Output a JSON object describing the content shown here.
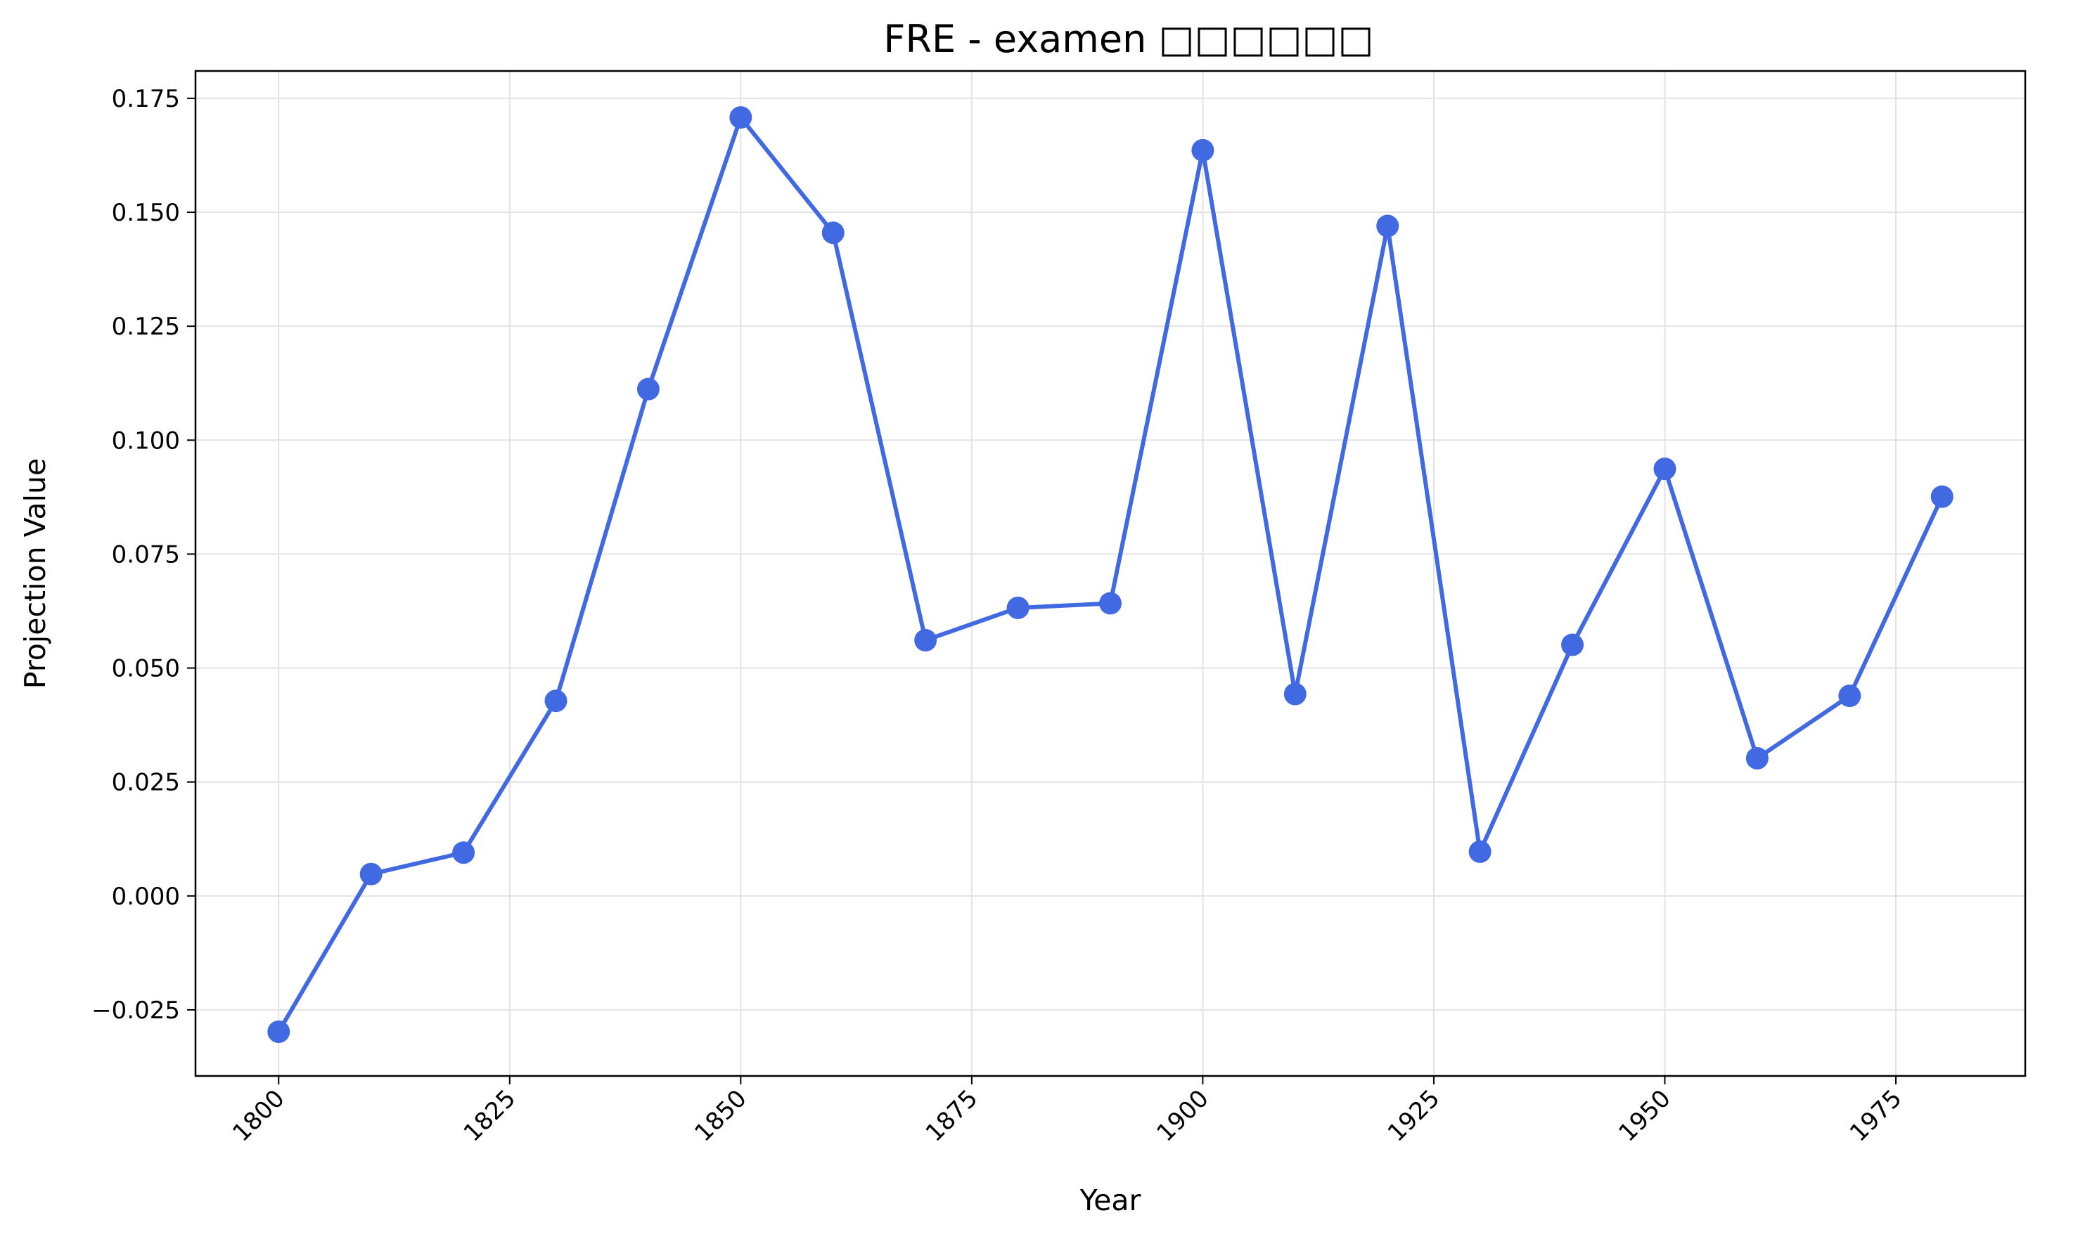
{
  "chart_data": {
    "type": "line",
    "title": "FRE - examen □□□□□□",
    "xlabel": "Year",
    "ylabel": "Projection Value",
    "x": [
      1800,
      1810,
      1820,
      1830,
      1840,
      1850,
      1860,
      1870,
      1880,
      1890,
      1900,
      1910,
      1920,
      1930,
      1940,
      1950,
      1960,
      1970,
      1980
    ],
    "series": [
      {
        "values": [
          -0.0298,
          0.0048,
          0.0095,
          0.0428,
          0.1112,
          0.1708,
          0.1455,
          0.0561,
          0.0632,
          0.0642,
          0.1636,
          0.0443,
          0.147,
          0.0097,
          0.0551,
          0.0937,
          0.0302,
          0.0439,
          0.0876
        ],
        "color": "#4169e1"
      }
    ],
    "xlim": [
      1791,
      1989
    ],
    "ylim": [
      -0.0395,
      0.181
    ],
    "xticks": [
      1800,
      1825,
      1850,
      1875,
      1900,
      1925,
      1950,
      1975
    ],
    "xtick_labels": [
      "1800",
      "1825",
      "1850",
      "1875",
      "1900",
      "1925",
      "1950",
      "1975"
    ],
    "yticks": [
      -0.025,
      0.0,
      0.025,
      0.05,
      0.075,
      0.1,
      0.125,
      0.15,
      0.175
    ],
    "ytick_labels": [
      "−0.025",
      "0.000",
      "0.025",
      "0.050",
      "0.075",
      "0.100",
      "0.125",
      "0.150",
      "0.175"
    ],
    "grid": true,
    "legend": "none"
  }
}
